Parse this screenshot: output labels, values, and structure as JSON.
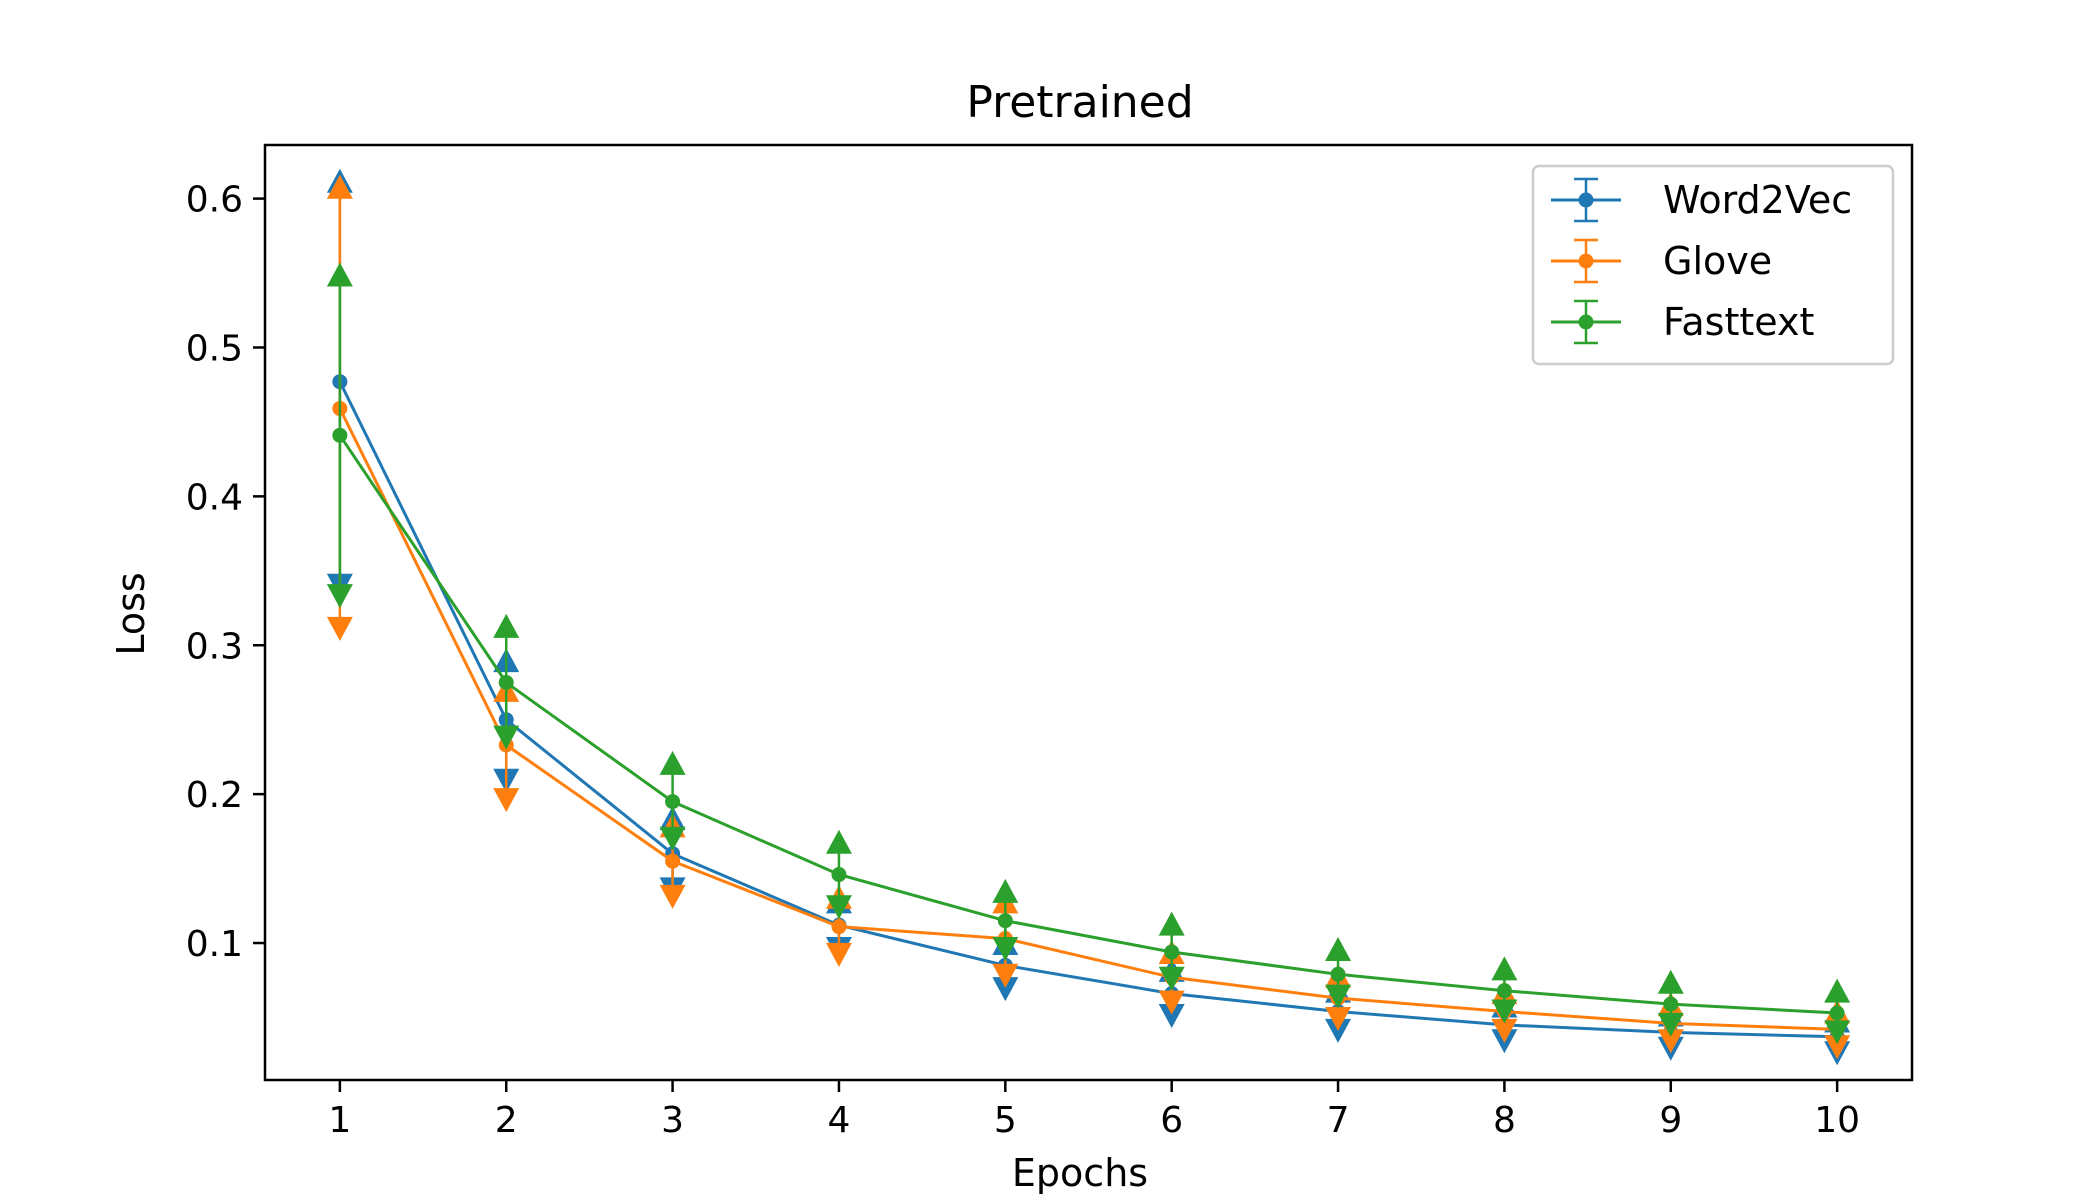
{
  "chart_data": {
    "type": "line",
    "title": "Pretrained",
    "xlabel": "Epochs",
    "ylabel": "Loss",
    "x": [
      1,
      2,
      3,
      4,
      5,
      6,
      7,
      8,
      9,
      10
    ],
    "xlim": [
      0.55,
      10.45
    ],
    "ylim": [
      0.008,
      0.636
    ],
    "xticks": [
      1,
      2,
      3,
      4,
      5,
      6,
      7,
      8,
      9,
      10
    ],
    "xtick_labels": [
      "1",
      "2",
      "3",
      "4",
      "5",
      "6",
      "7",
      "8",
      "9",
      "10"
    ],
    "yticks": [
      0.1,
      0.2,
      0.3,
      0.4,
      0.5,
      0.6
    ],
    "ytick_labels": [
      "0.1",
      "0.2",
      "0.3",
      "0.4",
      "0.5",
      "0.6"
    ],
    "grid": false,
    "legend_position": "top-right",
    "series": [
      {
        "name": "Word2Vec",
        "color": "#1f77b4",
        "values": [
          0.477,
          0.25,
          0.16,
          0.112,
          0.085,
          0.066,
          0.054,
          0.045,
          0.04,
          0.037
        ],
        "upper": [
          0.612,
          0.29,
          0.184,
          0.128,
          0.1,
          0.082,
          0.068,
          0.058,
          0.052,
          0.048
        ],
        "lower": [
          0.34,
          0.209,
          0.136,
          0.096,
          0.069,
          0.051,
          0.041,
          0.034,
          0.029,
          0.026
        ]
      },
      {
        "name": "Glove",
        "color": "#ff7f0e",
        "values": [
          0.459,
          0.233,
          0.155,
          0.111,
          0.103,
          0.077,
          0.063,
          0.054,
          0.046,
          0.042
        ],
        "upper": [
          0.608,
          0.27,
          0.179,
          0.131,
          0.128,
          0.094,
          0.078,
          0.067,
          0.059,
          0.054
        ],
        "lower": [
          0.311,
          0.196,
          0.131,
          0.092,
          0.078,
          0.06,
          0.049,
          0.041,
          0.034,
          0.03
        ]
      },
      {
        "name": "Fasttext",
        "color": "#2ca02c",
        "values": [
          0.441,
          0.275,
          0.195,
          0.146,
          0.115,
          0.094,
          0.079,
          0.068,
          0.059,
          0.053
        ],
        "upper": [
          0.549,
          0.313,
          0.221,
          0.168,
          0.135,
          0.113,
          0.096,
          0.083,
          0.074,
          0.068
        ],
        "lower": [
          0.333,
          0.238,
          0.17,
          0.124,
          0.096,
          0.076,
          0.064,
          0.054,
          0.045,
          0.04
        ]
      }
    ]
  }
}
